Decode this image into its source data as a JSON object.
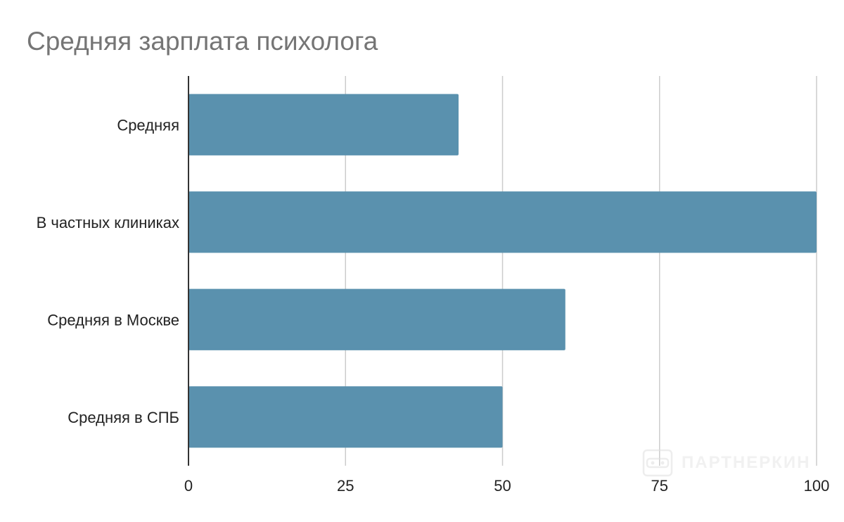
{
  "chart_data": {
    "type": "bar",
    "orientation": "horizontal",
    "title": "Средняя зарплата психолога",
    "categories": [
      "Средняя",
      "В частных клиниках",
      "Средняя в Москве",
      "Средняя в СПБ"
    ],
    "values": [
      43,
      100,
      60,
      50
    ],
    "xlim": [
      0,
      100
    ],
    "xticks": [
      0,
      25,
      50,
      75,
      100
    ],
    "xtick_labels": [
      "0",
      "25",
      "50",
      "75",
      "100"
    ],
    "xlabel": "",
    "ylabel": "",
    "grid": "vertical",
    "legend": "none",
    "colors": {
      "bar": "#5a91ae",
      "grid": "#cccccc",
      "axis": "#333333",
      "title": "#757575"
    }
  },
  "watermark": {
    "text": "ПАРТНЕРКИН",
    "icon": "vr-goggles-icon"
  }
}
